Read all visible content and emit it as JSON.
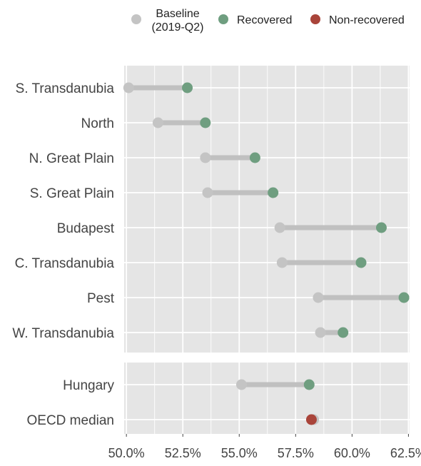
{
  "chart_data": {
    "type": "dumbbell",
    "legend": [
      {
        "label_line1": "Baseline",
        "label_line2": "(2019-Q2)",
        "color": "#c4c4c4"
      },
      {
        "label_line1": "Recovered",
        "label_line2": "",
        "color": "#6f9e80"
      },
      {
        "label_line1": "Non-recovered",
        "label_line2": "",
        "color": "#a9443a"
      }
    ],
    "x_ticks": [
      "50.0%",
      "52.5%",
      "55.0%",
      "57.5%",
      "60.0%",
      "62.5%"
    ],
    "x_tick_values": [
      50.0,
      52.5,
      55.0,
      57.5,
      60.0,
      62.5
    ],
    "xlim": [
      49.9,
      62.55
    ],
    "panels": [
      {
        "rows": [
          {
            "name": "S. Transdanubia",
            "baseline": 50.1,
            "latest": 52.7,
            "status": "recovered"
          },
          {
            "name": "North",
            "baseline": 51.4,
            "latest": 53.5,
            "status": "recovered"
          },
          {
            "name": "N. Great Plain",
            "baseline": 53.5,
            "latest": 55.7,
            "status": "recovered"
          },
          {
            "name": "S. Great Plain",
            "baseline": 53.6,
            "latest": 56.5,
            "status": "recovered"
          },
          {
            "name": "Budapest",
            "baseline": 56.8,
            "latest": 61.3,
            "status": "recovered"
          },
          {
            "name": "C. Transdanubia",
            "baseline": 56.9,
            "latest": 60.4,
            "status": "recovered"
          },
          {
            "name": "Pest",
            "baseline": 58.5,
            "latest": 62.3,
            "status": "recovered"
          },
          {
            "name": "W. Transdanubia",
            "baseline": 58.6,
            "latest": 59.6,
            "status": "recovered"
          }
        ]
      },
      {
        "rows": [
          {
            "name": "Hungary",
            "baseline": 55.1,
            "latest": 58.1,
            "status": "recovered"
          },
          {
            "name": "OECD median",
            "baseline": 58.3,
            "latest": 58.2,
            "status": "non-recovered"
          }
        ]
      }
    ],
    "colors": {
      "panel_bg": "#e5e5e5",
      "grid": "#ffffff",
      "connector": "#c0c0c0",
      "baseline": "#c4c4c4",
      "recovered": "#6f9e80",
      "non_recovered": "#a9443a"
    },
    "grid": true,
    "legend_position": "top"
  }
}
